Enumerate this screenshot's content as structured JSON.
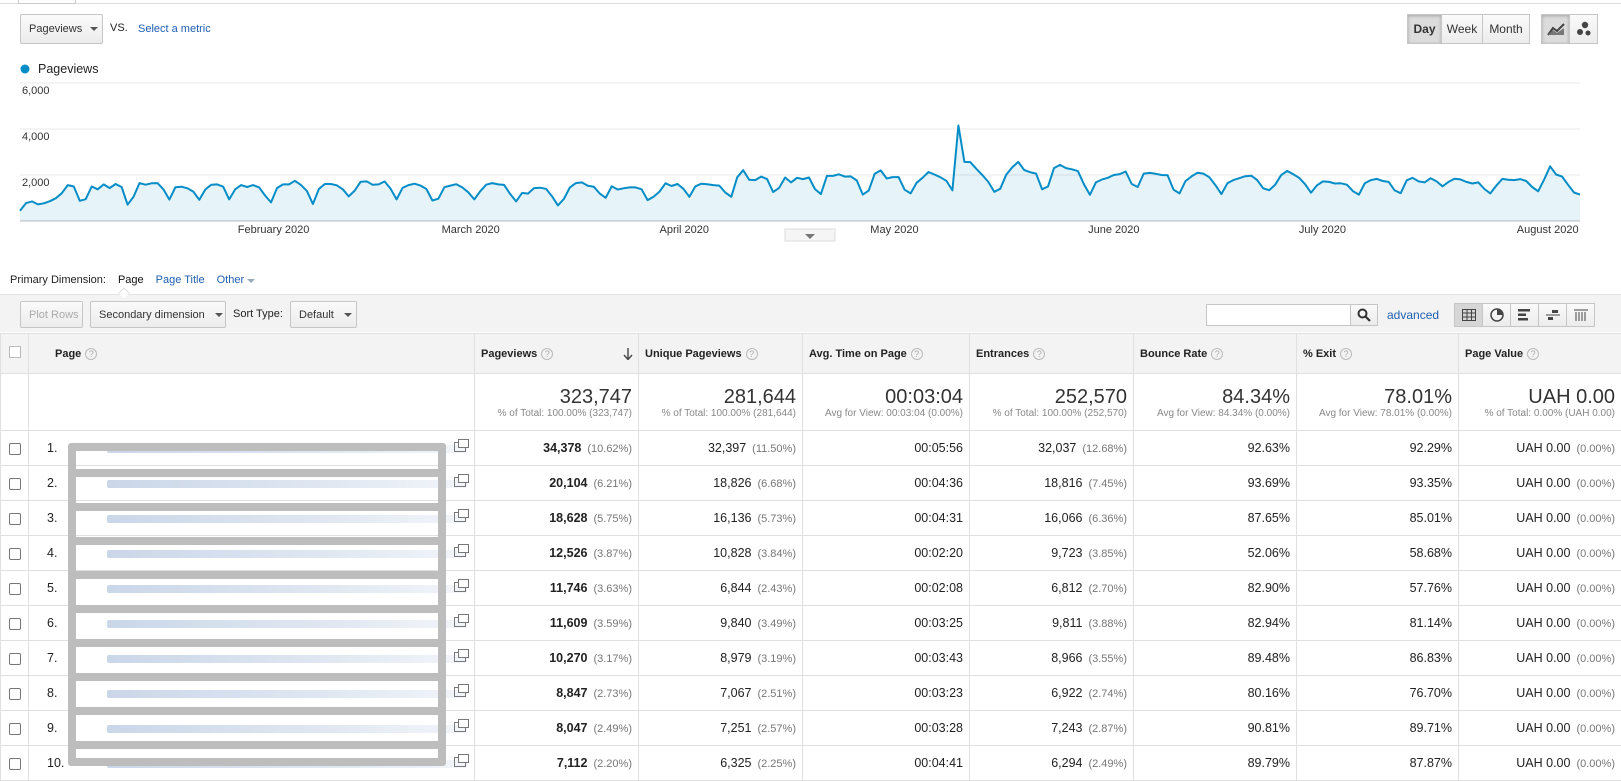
{
  "controls": {
    "metric_select": "Pageviews",
    "vs_label": "VS.",
    "select_metric": "Select a metric",
    "periods": [
      "Day",
      "Week",
      "Month"
    ],
    "active_period": "Day"
  },
  "chart_data": {
    "type": "area",
    "legend": "Pageviews",
    "color": "#058dc7",
    "ylim": [
      0,
      6000
    ],
    "y_ticks": [
      "6,000",
      "4,000",
      "2,000"
    ],
    "x_labels": [
      "February 2020",
      "March 2020",
      "April 2020",
      "May 2020",
      "June 2020",
      "July 2020",
      "August 2020"
    ],
    "x_range": [
      "2020-01-01",
      "2020-08-10"
    ],
    "values": [
      450,
      780,
      850,
      720,
      770,
      860,
      990,
      1210,
      1560,
      1500,
      880,
      950,
      1500,
      1380,
      1590,
      1430,
      1610,
      1480,
      710,
      1060,
      1650,
      1580,
      1640,
      1650,
      1380,
      930,
      1470,
      1490,
      1420,
      1280,
      920,
      1370,
      1580,
      1590,
      1490,
      940,
      1380,
      1560,
      1480,
      1560,
      1460,
      1110,
      810,
      1430,
      1590,
      1590,
      1750,
      1570,
      1310,
      740,
      1390,
      1610,
      1610,
      1550,
      1380,
      1070,
      1320,
      1710,
      1720,
      1580,
      1590,
      1720,
      1400,
      940,
      1440,
      1560,
      1620,
      1540,
      1390,
      890,
      970,
      1470,
      1540,
      1600,
      1460,
      1250,
      940,
      1290,
      1580,
      1650,
      1590,
      1570,
      1180,
      850,
      1220,
      1190,
      1430,
      1450,
      1400,
      1080,
      680,
      960,
      1460,
      1650,
      1680,
      1530,
      1490,
      1190,
      1010,
      1510,
      1370,
      1420,
      1460,
      1460,
      1380,
      910,
      1050,
      1280,
      1640,
      1520,
      1610,
      1400,
      1050,
      1510,
      1620,
      1600,
      1560,
      1540,
      1240,
      1050,
      1900,
      2210,
      1790,
      1780,
      1930,
      1820,
      1260,
      1440,
      1890,
      1680,
      1880,
      1820,
      1890,
      1390,
      1170,
      1960,
      1960,
      2030,
      1930,
      1940,
      1760,
      1150,
      1320,
      2050,
      2200,
      1850,
      1910,
      1910,
      1360,
      1200,
      1660,
      1880,
      2130,
      2020,
      1900,
      1750,
      1330,
      4150,
      2570,
      2560,
      2270,
      2000,
      1700,
      1270,
      1400,
      2010,
      2330,
      2570,
      2220,
      2120,
      2060,
      1380,
      1500,
      2300,
      2440,
      2300,
      2250,
      2170,
      1600,
      1140,
      1680,
      1800,
      1880,
      2000,
      2040,
      2150,
      1610,
      1480,
      2060,
      2090,
      2050,
      2000,
      1990,
      1360,
      1200,
      1740,
      1940,
      2100,
      2060,
      1900,
      1560,
      1170,
      1640,
      1780,
      1860,
      1950,
      1970,
      1780,
      1420,
      1340,
      1580,
      1990,
      2180,
      2040,
      1880,
      1600,
      1230,
      1550,
      1720,
      1700,
      1630,
      1640,
      1580,
      1300,
      1150,
      1640,
      1780,
      1830,
      1740,
      1700,
      1330,
      1210,
      1770,
      1880,
      1720,
      1680,
      1860,
      1720,
      1510,
      1700,
      1840,
      1810,
      1700,
      1630,
      1680,
      1390,
      1200,
      1540,
      1830,
      1790,
      1780,
      1820,
      1740,
      1480,
      1290,
      1800,
      2380,
      2020,
      1930,
      1580,
      1240,
      1150
    ]
  },
  "dimension_bar": {
    "label": "Primary Dimension:",
    "options": [
      "Page",
      "Page Title",
      "Other"
    ],
    "active": "Page"
  },
  "toolbar": {
    "plot_rows": "Plot Rows",
    "secondary_dimension": "Secondary dimension",
    "sort_type_label": "Sort Type:",
    "sort_type": "Default",
    "search_placeholder": "",
    "advanced": "advanced"
  },
  "table": {
    "headers": [
      "Page",
      "Pageviews",
      "Unique Pageviews",
      "Avg. Time on Page",
      "Entrances",
      "Bounce Rate",
      "% Exit",
      "Page Value"
    ],
    "totals": [
      {
        "big": "323,747",
        "sub": "% of Total: 100.00% (323,747)"
      },
      {
        "big": "281,644",
        "sub": "% of Total: 100.00% (281,644)"
      },
      {
        "big": "00:03:04",
        "sub": "Avg for View: 00:03:04 (0.00%)"
      },
      {
        "big": "252,570",
        "sub": "% of Total: 100.00% (252,570)"
      },
      {
        "big": "84.34%",
        "sub": "Avg for View: 84.34% (0.00%)"
      },
      {
        "big": "78.01%",
        "sub": "Avg for View: 78.01% (0.00%)"
      },
      {
        "big": "UAH 0.00",
        "sub": "% of Total: 0.00% (UAH 0.00)"
      }
    ],
    "rows": [
      {
        "idx": "1.",
        "pv": "34,378",
        "pv_pct": "(10.62%)",
        "upv": "32,397",
        "upv_pct": "(11.50%)",
        "time": "00:05:56",
        "ent": "32,037",
        "ent_pct": "(12.68%)",
        "bounce": "92.63%",
        "exit": "92.29%",
        "value": "UAH 0.00",
        "value_pct": "(0.00%)"
      },
      {
        "idx": "2.",
        "pv": "20,104",
        "pv_pct": "(6.21%)",
        "upv": "18,826",
        "upv_pct": "(6.68%)",
        "time": "00:04:36",
        "ent": "18,816",
        "ent_pct": "(7.45%)",
        "bounce": "93.69%",
        "exit": "93.35%",
        "value": "UAH 0.00",
        "value_pct": "(0.00%)"
      },
      {
        "idx": "3.",
        "pv": "18,628",
        "pv_pct": "(5.75%)",
        "upv": "16,136",
        "upv_pct": "(5.73%)",
        "time": "00:04:31",
        "ent": "16,066",
        "ent_pct": "(6.36%)",
        "bounce": "87.65%",
        "exit": "85.01%",
        "value": "UAH 0.00",
        "value_pct": "(0.00%)"
      },
      {
        "idx": "4.",
        "pv": "12,526",
        "pv_pct": "(3.87%)",
        "upv": "10,828",
        "upv_pct": "(3.84%)",
        "time": "00:02:20",
        "ent": "9,723",
        "ent_pct": "(3.85%)",
        "bounce": "52.06%",
        "exit": "58.68%",
        "value": "UAH 0.00",
        "value_pct": "(0.00%)"
      },
      {
        "idx": "5.",
        "pv": "11,746",
        "pv_pct": "(3.63%)",
        "upv": "6,844",
        "upv_pct": "(2.43%)",
        "time": "00:02:08",
        "ent": "6,812",
        "ent_pct": "(2.70%)",
        "bounce": "82.90%",
        "exit": "57.76%",
        "value": "UAH 0.00",
        "value_pct": "(0.00%)"
      },
      {
        "idx": "6.",
        "pv": "11,609",
        "pv_pct": "(3.59%)",
        "upv": "9,840",
        "upv_pct": "(3.49%)",
        "time": "00:03:25",
        "ent": "9,811",
        "ent_pct": "(3.88%)",
        "bounce": "82.94%",
        "exit": "81.14%",
        "value": "UAH 0.00",
        "value_pct": "(0.00%)"
      },
      {
        "idx": "7.",
        "pv": "10,270",
        "pv_pct": "(3.17%)",
        "upv": "8,979",
        "upv_pct": "(3.19%)",
        "time": "00:03:43",
        "ent": "8,966",
        "ent_pct": "(3.55%)",
        "bounce": "89.48%",
        "exit": "86.83%",
        "value": "UAH 0.00",
        "value_pct": "(0.00%)"
      },
      {
        "idx": "8.",
        "pv": "8,847",
        "pv_pct": "(2.73%)",
        "upv": "7,067",
        "upv_pct": "(2.51%)",
        "time": "00:03:23",
        "ent": "6,922",
        "ent_pct": "(2.74%)",
        "bounce": "80.16%",
        "exit": "76.70%",
        "value": "UAH 0.00",
        "value_pct": "(0.00%)"
      },
      {
        "idx": "9.",
        "pv": "8,047",
        "pv_pct": "(2.49%)",
        "upv": "7,251",
        "upv_pct": "(2.57%)",
        "time": "00:03:28",
        "ent": "7,243",
        "ent_pct": "(2.87%)",
        "bounce": "90.81%",
        "exit": "89.71%",
        "value": "UAH 0.00",
        "value_pct": "(0.00%)"
      },
      {
        "idx": "10.",
        "pv": "7,112",
        "pv_pct": "(2.20%)",
        "upv": "6,325",
        "upv_pct": "(2.25%)",
        "time": "00:04:41",
        "ent": "6,294",
        "ent_pct": "(2.49%)",
        "bounce": "89.79%",
        "exit": "87.87%",
        "value": "UAH 0.00",
        "value_pct": "(0.00%)"
      }
    ]
  }
}
